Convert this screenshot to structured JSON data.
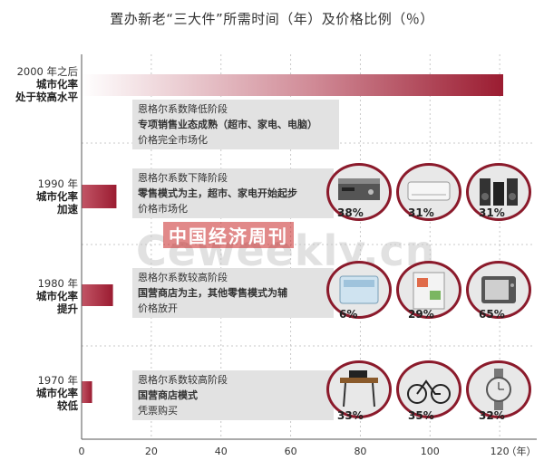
{
  "title": "置办新老“三大件”所需时间（年）及价格比例（％）",
  "chart_data": {
    "type": "bar",
    "orientation": "horizontal",
    "categories": [
      "2000 年之后",
      "1990 年",
      "1980 年",
      "1970 年"
    ],
    "values": [
      121,
      10,
      9,
      3
    ],
    "xlabel": "（年）",
    "xlim": [
      0,
      125
    ],
    "xticks": [
      0,
      20,
      40,
      60,
      80,
      100,
      120
    ]
  },
  "eras": [
    {
      "year": "2000 年之后",
      "desc": [
        "城市化率",
        "处于较高水平"
      ],
      "notes": [
        "恩格尔系数降低阶段",
        "专项销售业态成熟（超市、家电、电脑）",
        "价格完全市场化"
      ],
      "items": []
    },
    {
      "year": "1990 年",
      "desc": [
        "城市化率",
        "加速"
      ],
      "notes": [
        "恩格尔系数下降阶段",
        "零售模式为主，超市、家电开始起步",
        "价格市场化"
      ],
      "items": [
        {
          "icon": "vcr-icon",
          "pct": "38%"
        },
        {
          "icon": "air-conditioner-icon",
          "pct": "31%"
        },
        {
          "icon": "stereo-icon",
          "pct": "31%"
        }
      ]
    },
    {
      "year": "1980 年",
      "desc": [
        "城市化率",
        "提升"
      ],
      "notes": [
        "恩格尔系数较高阶段",
        "国营商店为主，其他零售模式为辅",
        "价格放开"
      ],
      "items": [
        {
          "icon": "washing-machine-icon",
          "pct": "6%"
        },
        {
          "icon": "refrigerator-icon",
          "pct": "29%"
        },
        {
          "icon": "television-icon",
          "pct": "65%"
        }
      ]
    },
    {
      "year": "1970 年",
      "desc": [
        "城市化率",
        "较低"
      ],
      "notes": [
        "恩格尔系数较高阶段",
        "国营商店模式",
        "凭票购买"
      ],
      "items": [
        {
          "icon": "sewing-machine-icon",
          "pct": "33%"
        },
        {
          "icon": "bicycle-icon",
          "pct": "35%"
        },
        {
          "icon": "watch-icon",
          "pct": "32%"
        }
      ]
    }
  ],
  "watermark": {
    "cn": "中国经济周刊",
    "en": "Ceweekly.cn"
  },
  "colors": {
    "bar_dark": "#9b1c31",
    "bar_light": "#ffffff",
    "icon_border": "#8b1a2b",
    "note_bg": "#e2e2e2"
  }
}
